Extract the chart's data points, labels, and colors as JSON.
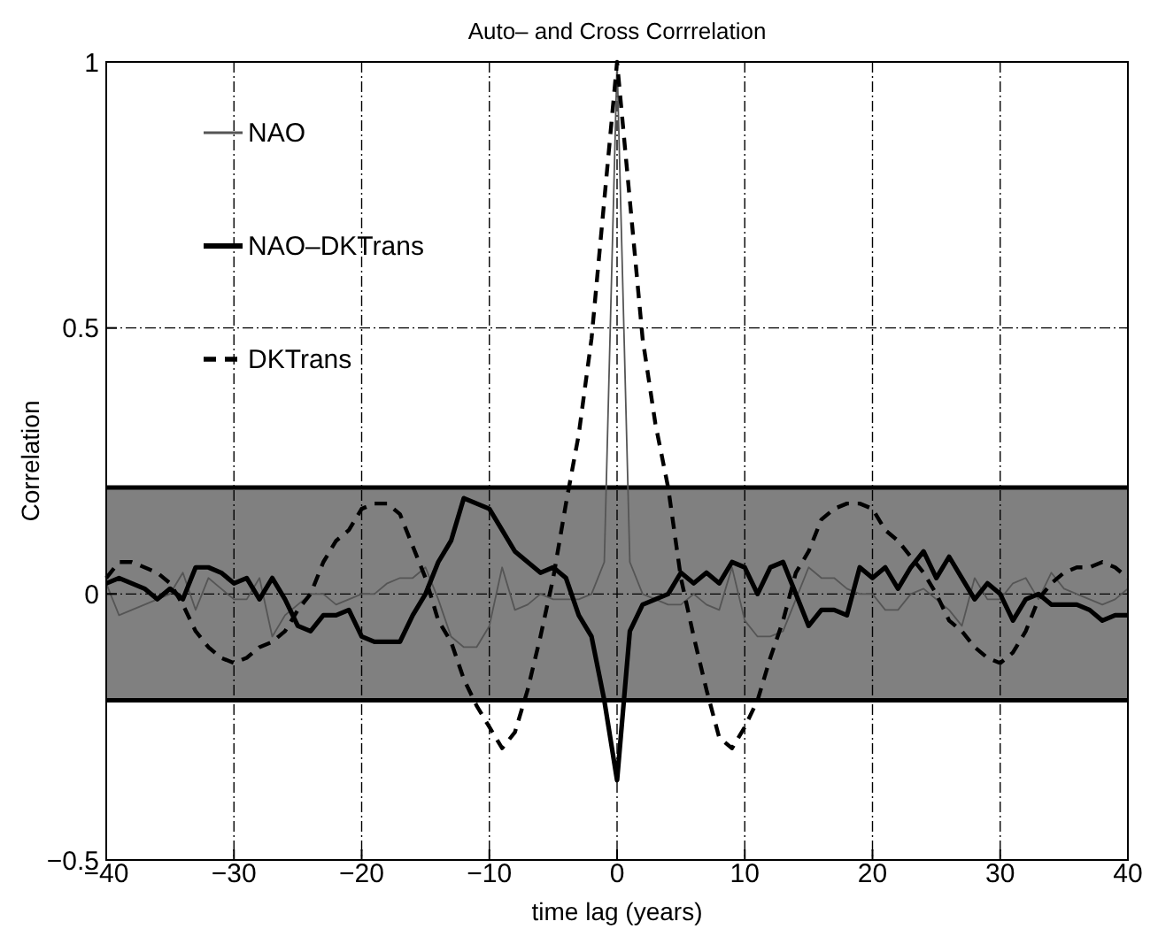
{
  "chart_data": {
    "type": "line",
    "title": "Auto– and Cross Corrrelation",
    "xlabel": "time lag (years)",
    "ylabel": "Correlation",
    "x": [
      -40,
      -39,
      -38,
      -37,
      -36,
      -35,
      -34,
      -33,
      -32,
      -31,
      -30,
      -29,
      -28,
      -27,
      -26,
      -25,
      -24,
      -23,
      -22,
      -21,
      -20,
      -19,
      -18,
      -17,
      -16,
      -15,
      -14,
      -13,
      -12,
      -11,
      -10,
      -9,
      -8,
      -7,
      -6,
      -5,
      -4,
      -3,
      -2,
      -1,
      0,
      1,
      2,
      3,
      4,
      5,
      6,
      7,
      8,
      9,
      10,
      11,
      12,
      13,
      14,
      15,
      16,
      17,
      18,
      19,
      20,
      21,
      22,
      23,
      24,
      25,
      26,
      27,
      28,
      29,
      30,
      31,
      32,
      33,
      34,
      35,
      36,
      37,
      38,
      39,
      40
    ],
    "series": [
      {
        "name": "NAO",
        "color": "#555555",
        "line_style": "solid",
        "values": [
          0.02,
          -0.04,
          -0.03,
          -0.02,
          -0.01,
          0.0,
          0.04,
          -0.03,
          0.03,
          0.01,
          -0.01,
          -0.01,
          0.03,
          -0.08,
          -0.04,
          -0.02,
          0.0,
          0.0,
          -0.02,
          -0.01,
          0.0,
          0.0,
          0.02,
          0.03,
          0.03,
          0.05,
          -0.01,
          -0.08,
          -0.1,
          -0.1,
          -0.06,
          0.05,
          -0.03,
          -0.02,
          0.0,
          -0.01,
          -0.01,
          -0.01,
          0.0,
          0.06,
          1,
          0.06,
          0.0,
          -0.01,
          -0.02,
          -0.02,
          0.0,
          -0.02,
          -0.03,
          0.05,
          -0.05,
          -0.08,
          -0.08,
          -0.07,
          -0.01,
          0.05,
          0.03,
          0.03,
          0.01,
          0.0,
          0.0,
          -0.03,
          -0.03,
          0.0,
          0.01,
          -0.01,
          -0.03,
          -0.06,
          0.03,
          -0.01,
          -0.01,
          0.02,
          0.03,
          -0.01,
          0.04,
          0.01,
          0.0,
          -0.01,
          -0.02,
          -0.01,
          0.01
        ]
      },
      {
        "name": "NAO–DKTrans",
        "color": "#000000",
        "line_style": "solid",
        "values": [
          0.02,
          0.03,
          0.02,
          0.01,
          -0.01,
          0.01,
          -0.01,
          0.05,
          0.05,
          0.04,
          0.02,
          0.03,
          -0.01,
          0.03,
          -0.01,
          -0.06,
          -0.07,
          -0.04,
          -0.04,
          -0.03,
          -0.08,
          -0.09,
          -0.09,
          -0.09,
          -0.04,
          0.0,
          0.06,
          0.1,
          0.18,
          0.17,
          0.16,
          0.12,
          0.08,
          0.06,
          0.04,
          0.05,
          0.03,
          -0.04,
          -0.08,
          -0.2,
          -0.35,
          -0.07,
          -0.02,
          -0.01,
          0.0,
          0.04,
          0.02,
          0.04,
          0.02,
          0.06,
          0.05,
          0.0,
          0.05,
          0.06,
          0.0,
          -0.06,
          -0.03,
          -0.03,
          -0.04,
          0.05,
          0.03,
          0.05,
          0.01,
          0.05,
          0.08,
          0.03,
          0.07,
          0.03,
          -0.01,
          0.02,
          0.0,
          -0.05,
          -0.01,
          0.0,
          -0.02,
          -0.02,
          -0.02,
          -0.03,
          -0.05,
          -0.04,
          -0.04
        ]
      },
      {
        "name": "DKTrans",
        "color": "#000000",
        "line_style": "dashed",
        "values": [
          0.03,
          0.06,
          0.06,
          0.05,
          0.04,
          0.02,
          -0.02,
          -0.07,
          -0.1,
          -0.12,
          -0.13,
          -0.12,
          -0.1,
          -0.09,
          -0.07,
          -0.03,
          0.0,
          0.06,
          0.1,
          0.12,
          0.16,
          0.17,
          0.17,
          0.15,
          0.09,
          0.03,
          -0.05,
          -0.09,
          -0.16,
          -0.21,
          -0.25,
          -0.29,
          -0.26,
          -0.18,
          -0.08,
          0.03,
          0.17,
          0.3,
          0.48,
          0.74,
          1,
          0.74,
          0.48,
          0.32,
          0.2,
          0.03,
          -0.08,
          -0.18,
          -0.27,
          -0.29,
          -0.25,
          -0.2,
          -0.12,
          -0.05,
          0.04,
          0.08,
          0.14,
          0.16,
          0.17,
          0.17,
          0.16,
          0.12,
          0.1,
          0.07,
          0.04,
          0.0,
          -0.05,
          -0.07,
          -0.1,
          -0.12,
          -0.13,
          -0.11,
          -0.07,
          -0.01,
          0.02,
          0.04,
          0.05,
          0.05,
          0.06,
          0.05,
          0.03
        ]
      }
    ],
    "bands": [
      {
        "axis": "y",
        "from": -0.2,
        "to": 0.2,
        "color": "#808080"
      }
    ],
    "ref_lines": [
      {
        "axis": "y",
        "value": 0.2,
        "color": "#000000"
      },
      {
        "axis": "y",
        "value": -0.2,
        "color": "#000000"
      }
    ],
    "xlim": [
      -40,
      40
    ],
    "xticks": [
      -40,
      -30,
      -20,
      -10,
      0,
      10,
      20,
      30,
      40
    ],
    "ylim": [
      -0.5,
      1
    ],
    "yticks": [
      -0.5,
      0,
      0.5,
      1
    ],
    "grid": true,
    "legend": "top left",
    "marker": "none"
  }
}
